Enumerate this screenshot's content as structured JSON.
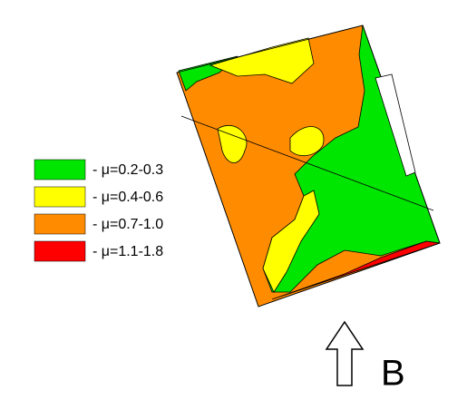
{
  "legend": {
    "items": [
      {
        "label": "- μ=0.2-0.3",
        "color": "#00e600"
      },
      {
        "label": "- μ=0.4-0.6",
        "color": "#ffff00"
      },
      {
        "label": "- μ=0.7-1.0",
        "color": "#ff8c00"
      },
      {
        "label": "- μ=1.1-1.8",
        "color": "#ff0000"
      }
    ]
  },
  "direction_label": "B"
}
